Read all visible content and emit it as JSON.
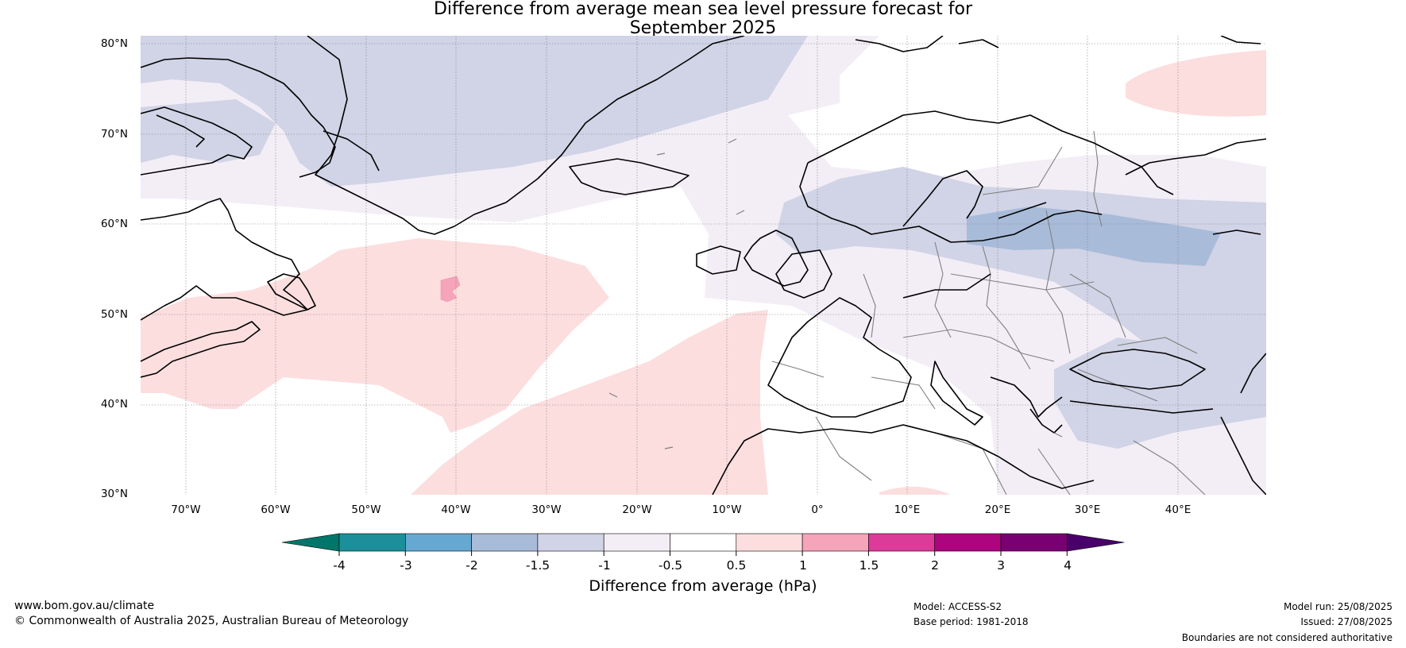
{
  "title_line1": "Difference from average mean sea level pressure forecast for",
  "title_line2": "September 2025",
  "latitude_labels": [
    "80°N",
    "70°N",
    "60°N",
    "50°N",
    "40°N",
    "30°N"
  ],
  "longitude_labels": [
    "70°W",
    "60°W",
    "50°W",
    "40°W",
    "30°W",
    "20°W",
    "10°W",
    "0°",
    "10°E",
    "20°E",
    "30°E",
    "40°E"
  ],
  "colorbar": {
    "ticks": [
      "-4",
      "-3",
      "-2",
      "-1.5",
      "-1",
      "-0.5",
      "0.5",
      "1",
      "1.5",
      "2",
      "3",
      "4"
    ],
    "label": "Difference from average (hPa)",
    "colors": [
      "#00766a",
      "#1c8f9a",
      "#65a8d1",
      "#a8bbd9",
      "#d1d3e6",
      "#f3eef6",
      "#ffffff",
      "#fcdedf",
      "#f6a4b9",
      "#dc3b9a",
      "#ad0480",
      "#790073",
      "#49006a"
    ]
  },
  "map_colors": {
    "ocean_blue": "#d1d3e6",
    "light_lilac": "#f3eef6",
    "steel_blue": "#a8bbd9",
    "pale_pink": "#fcdedf",
    "pink": "#f6a4b9",
    "coastline": "#000000",
    "borders": "#808080"
  },
  "footer": {
    "website": "www.bom.gov.au/climate",
    "copyright": "© Commonwealth of Australia 2025, Australian Bureau of Meteorology",
    "model": "Model: ACCESS-S2",
    "base_period": "Base period: 1981-2018",
    "model_run": "Model run: 25/08/2025",
    "issued": "Issued: 27/08/2025",
    "disclaimer": "Boundaries are not considered authoritative"
  }
}
